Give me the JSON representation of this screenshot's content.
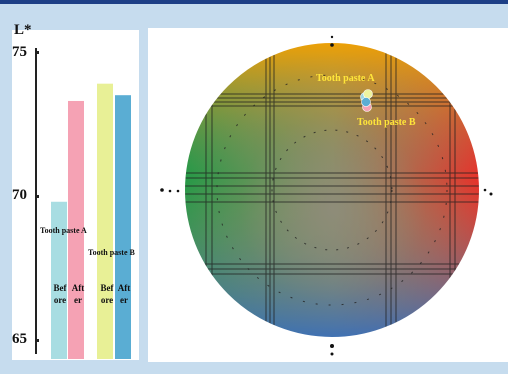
{
  "chart_data": [
    {
      "type": "bar",
      "ylabel": "L*",
      "ylim": [
        65,
        75
      ],
      "yticks": [
        "75",
        "70",
        "65"
      ],
      "categories": [
        "Before",
        "After",
        "Before",
        "After"
      ],
      "groups": [
        "Tooth paste A",
        "Tooth paste B"
      ],
      "values": [
        69.8,
        73.3,
        73.9,
        73.5
      ],
      "colors": [
        "#a8dde2",
        "#f5a2b4",
        "#e8f096",
        "#5aadd3"
      ]
    },
    {
      "type": "scatter",
      "description_labels": [
        "Tooth paste A",
        "Tooth paste B"
      ],
      "points": [
        {
          "series": "Tooth paste A",
          "label": "Before",
          "color": "#9fd6e0"
        },
        {
          "series": "Tooth paste A",
          "label": "After",
          "color": "#f5a2b4"
        },
        {
          "series": "Tooth paste B",
          "label": "Before",
          "color": "#eef3a0"
        },
        {
          "series": "Tooth paste B",
          "label": "After",
          "color": "#5aadd3"
        }
      ]
    }
  ]
}
